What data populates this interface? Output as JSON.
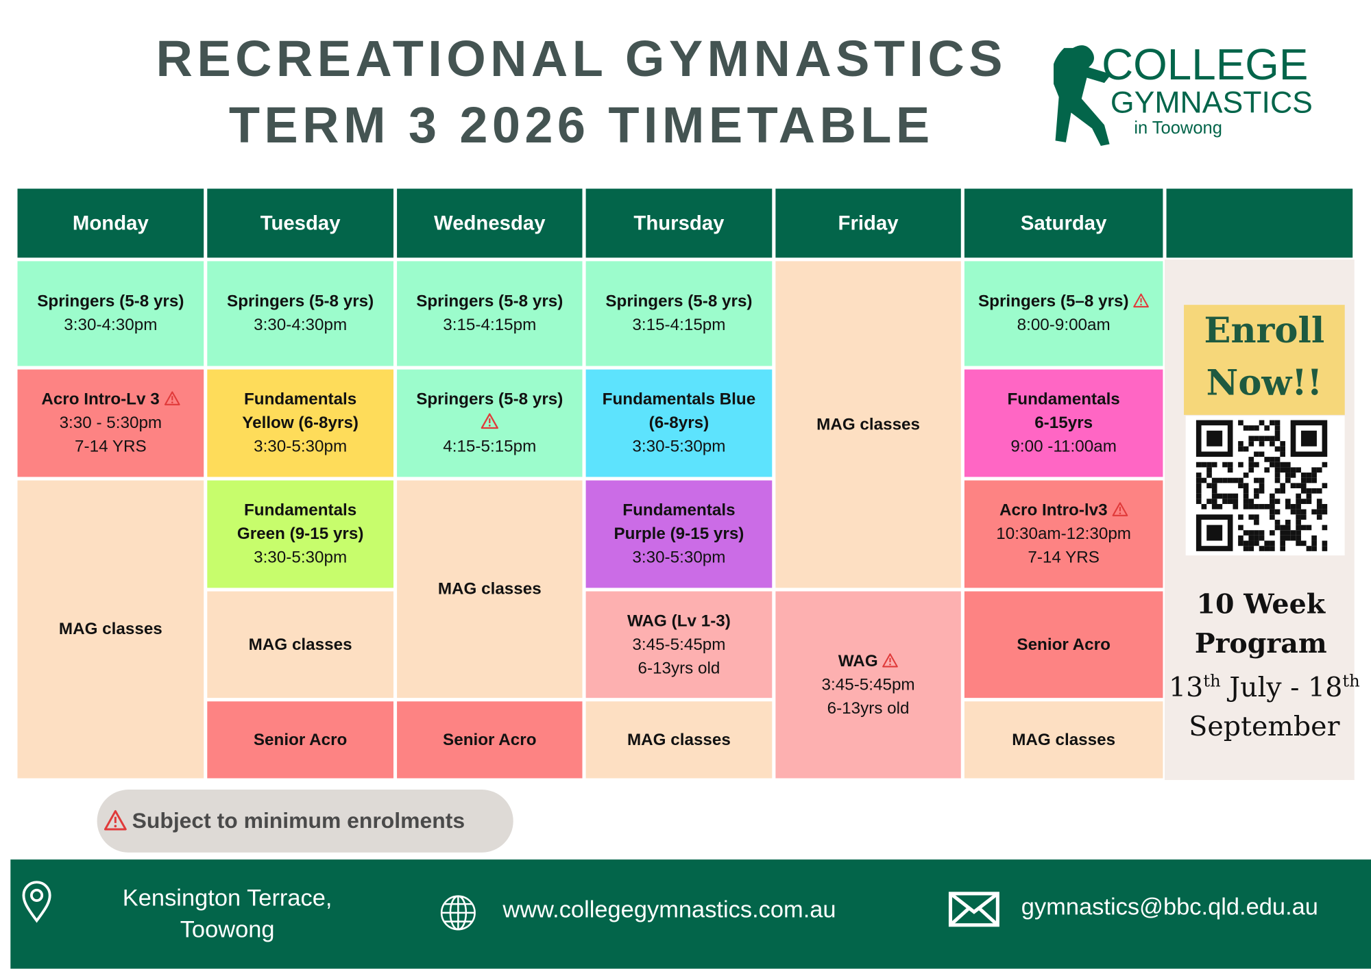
{
  "header": {
    "title": [
      "RECREATIONAL GYMNASTICS",
      "TERM 3 2026 TIMETABLE"
    ]
  },
  "logo": {
    "lines": [
      "COLLEGE",
      "GYMNASTICS",
      "in Toowong"
    ]
  },
  "timetable": {
    "columns": [
      {
        "day": "Monday",
        "cells": [
          {
            "lines": [
              "Springers (5-8 yrs)",
              "3:30-4:30pm"
            ]
          },
          {
            "lines": [
              "Acro Intro-Lv 3",
              "3:30 - 5:30pm",
              "7-14 YRS"
            ]
          },
          {
            "lines": [
              "MAG classes"
            ]
          }
        ]
      },
      {
        "day": "Tuesday",
        "cells": [
          {
            "lines": [
              "Springers (5-8 yrs)",
              "3:30-4:30pm"
            ]
          },
          {
            "lines": [
              "Fundamentals",
              "Yellow (6-8yrs)",
              "3:30-5:30pm"
            ]
          },
          {
            "lines": [
              "Fundamentals",
              "Green (9-15 yrs)",
              "3:30-5:30pm"
            ]
          },
          {
            "lines": [
              "MAG classes"
            ]
          },
          {
            "lines": [
              "Senior Acro"
            ]
          }
        ]
      },
      {
        "day": "Wednesday",
        "cells": [
          {
            "lines": [
              "Springers (5-8 yrs)",
              "3:15-4:15pm"
            ]
          },
          {
            "lines": [
              "Springers (5-8 yrs)",
              "4:15-5:15pm"
            ]
          },
          {
            "lines": [
              "MAG classes"
            ]
          },
          {
            "lines": [
              "Senior Acro"
            ]
          }
        ]
      },
      {
        "day": "Thursday",
        "cells": [
          {
            "lines": [
              "Springers (5-8 yrs)",
              "3:15-4:15pm"
            ]
          },
          {
            "lines": [
              "Fundamentals Blue",
              "(6-8yrs)",
              "3:30-5:30pm"
            ]
          },
          {
            "lines": [
              "Fundamentals",
              "Purple (9-15 yrs)",
              "3:30-5:30pm"
            ]
          },
          {
            "lines": [
              "WAG (Lv 1-3)",
              "3:45-5:45pm",
              "6-13yrs old"
            ]
          },
          {
            "lines": [
              "MAG classes"
            ]
          }
        ]
      },
      {
        "day": "Friday",
        "cells": [
          {
            "lines": [
              "MAG classes"
            ]
          },
          {
            "lines": [
              "WAG",
              "3:45-5:45pm",
              "6-13yrs old"
            ]
          }
        ]
      },
      {
        "day": "Saturday",
        "cells": [
          {
            "lines": [
              "Springers (5–8 yrs)",
              "8:00-9:00am"
            ]
          },
          {
            "lines": [
              "Fundamentals",
              "6-15yrs",
              "9:00 -11:00am"
            ]
          },
          {
            "lines": [
              "Acro Intro-lv3",
              "10:30am-12:30pm",
              "7-14 YRS"
            ]
          },
          {
            "lines": [
              "Senior Acro"
            ]
          },
          {
            "lines": [
              "MAG classes"
            ]
          }
        ]
      }
    ]
  },
  "sidebar": {
    "enroll": [
      "Enroll",
      "Now!!"
    ],
    "program": [
      "10 Week",
      "Program"
    ],
    "dates": [
      [
        "13",
        "th",
        " July - 18",
        "th"
      ],
      [
        "September"
      ]
    ]
  },
  "note": "Subject to minimum enrolments",
  "footer": {
    "address": [
      "Kensington Terrace,",
      "Toowong"
    ],
    "website": "www.collegegymnastics.com.au",
    "email": "gymnastics@bbc.qld.edu.au"
  }
}
